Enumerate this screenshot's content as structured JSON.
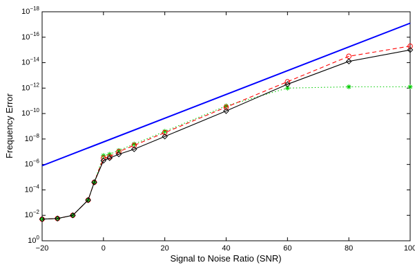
{
  "chart_data": {
    "type": "line",
    "title": "",
    "xlabel": "Signal to Noise Ratio (SNR)",
    "ylabel": "Frequency Error",
    "xlim": [
      -20,
      100
    ],
    "ylim_exponent": [
      -18,
      0
    ],
    "yscale": "log",
    "grid": false,
    "legend": "none",
    "x_ticks": [
      -20,
      0,
      20,
      40,
      60,
      80,
      100
    ],
    "y_ticks_exponent": [
      0,
      -2,
      -4,
      -6,
      -8,
      -10,
      -12,
      -14,
      -16,
      -18
    ],
    "series": [
      {
        "color": "#0000ff",
        "line": "solid",
        "marker": "none",
        "x": [
          -20,
          100
        ],
        "log10_y": [
          -5.9,
          -17.1
        ]
      },
      {
        "color": "#ff0000",
        "line": "dashed",
        "marker": "circle",
        "x": [
          -20,
          -15,
          -10,
          -5,
          -3,
          0,
          2,
          5,
          10,
          20,
          40,
          60,
          80,
          100
        ],
        "log10_y": [
          -1.7,
          -1.75,
          -2.0,
          -3.2,
          -4.6,
          -6.5,
          -6.6,
          -7.0,
          -7.5,
          -8.5,
          -10.5,
          -12.5,
          -14.5,
          -15.3
        ]
      },
      {
        "color": "#00cc00",
        "line": "dotted",
        "marker": "star",
        "x": [
          -20,
          -15,
          -10,
          -5,
          -3,
          0,
          2,
          5,
          10,
          20,
          40,
          60,
          80,
          100
        ],
        "log10_y": [
          -1.7,
          -1.75,
          -2.0,
          -3.2,
          -4.6,
          -6.7,
          -6.8,
          -7.1,
          -7.6,
          -8.6,
          -10.6,
          -12.0,
          -12.1,
          -12.1
        ]
      },
      {
        "color": "#000000",
        "line": "solid",
        "marker": "diamond",
        "x": [
          -20,
          -15,
          -10,
          -5,
          -3,
          0,
          2,
          5,
          10,
          20,
          40,
          60,
          80,
          100
        ],
        "log10_y": [
          -1.7,
          -1.75,
          -2.0,
          -3.2,
          -4.6,
          -6.3,
          -6.5,
          -6.8,
          -7.2,
          -8.2,
          -10.2,
          -12.3,
          -14.1,
          -15.0
        ]
      }
    ]
  }
}
